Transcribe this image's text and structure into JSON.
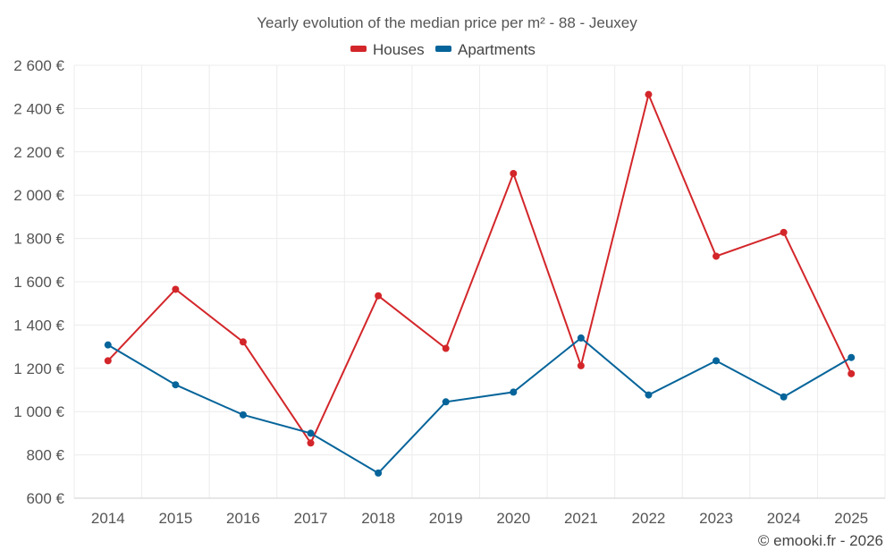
{
  "chart_data": {
    "type": "line",
    "title": "Yearly evolution of the median price per m² - 88 - Jeuxey",
    "categories": [
      "2014",
      "2015",
      "2016",
      "2017",
      "2018",
      "2019",
      "2020",
      "2021",
      "2022",
      "2023",
      "2024",
      "2025"
    ],
    "series": [
      {
        "name": "Houses",
        "color": "#d3262a",
        "values": [
          1235,
          1565,
          1322,
          855,
          1535,
          1292,
          2100,
          1212,
          2465,
          1718,
          1828,
          1175
        ]
      },
      {
        "name": "Apartments",
        "color": "#05649a",
        "values": [
          1308,
          1124,
          985,
          900,
          716,
          1045,
          1090,
          1340,
          1077,
          1235,
          1068,
          1250
        ]
      }
    ],
    "ylim": [
      600,
      2600
    ],
    "yticks": [
      600,
      800,
      1000,
      1200,
      1400,
      1600,
      1800,
      2000,
      2200,
      2400,
      2600
    ],
    "ytick_labels": [
      "600 €",
      "800 €",
      "1 000 €",
      "1 200 €",
      "1 400 €",
      "1 600 €",
      "1 800 €",
      "2 000 €",
      "2 200 €",
      "2 400 €",
      "2 600 €"
    ],
    "grid": true,
    "legend": "top-center"
  },
  "credit": "© emooki.fr - 2026"
}
